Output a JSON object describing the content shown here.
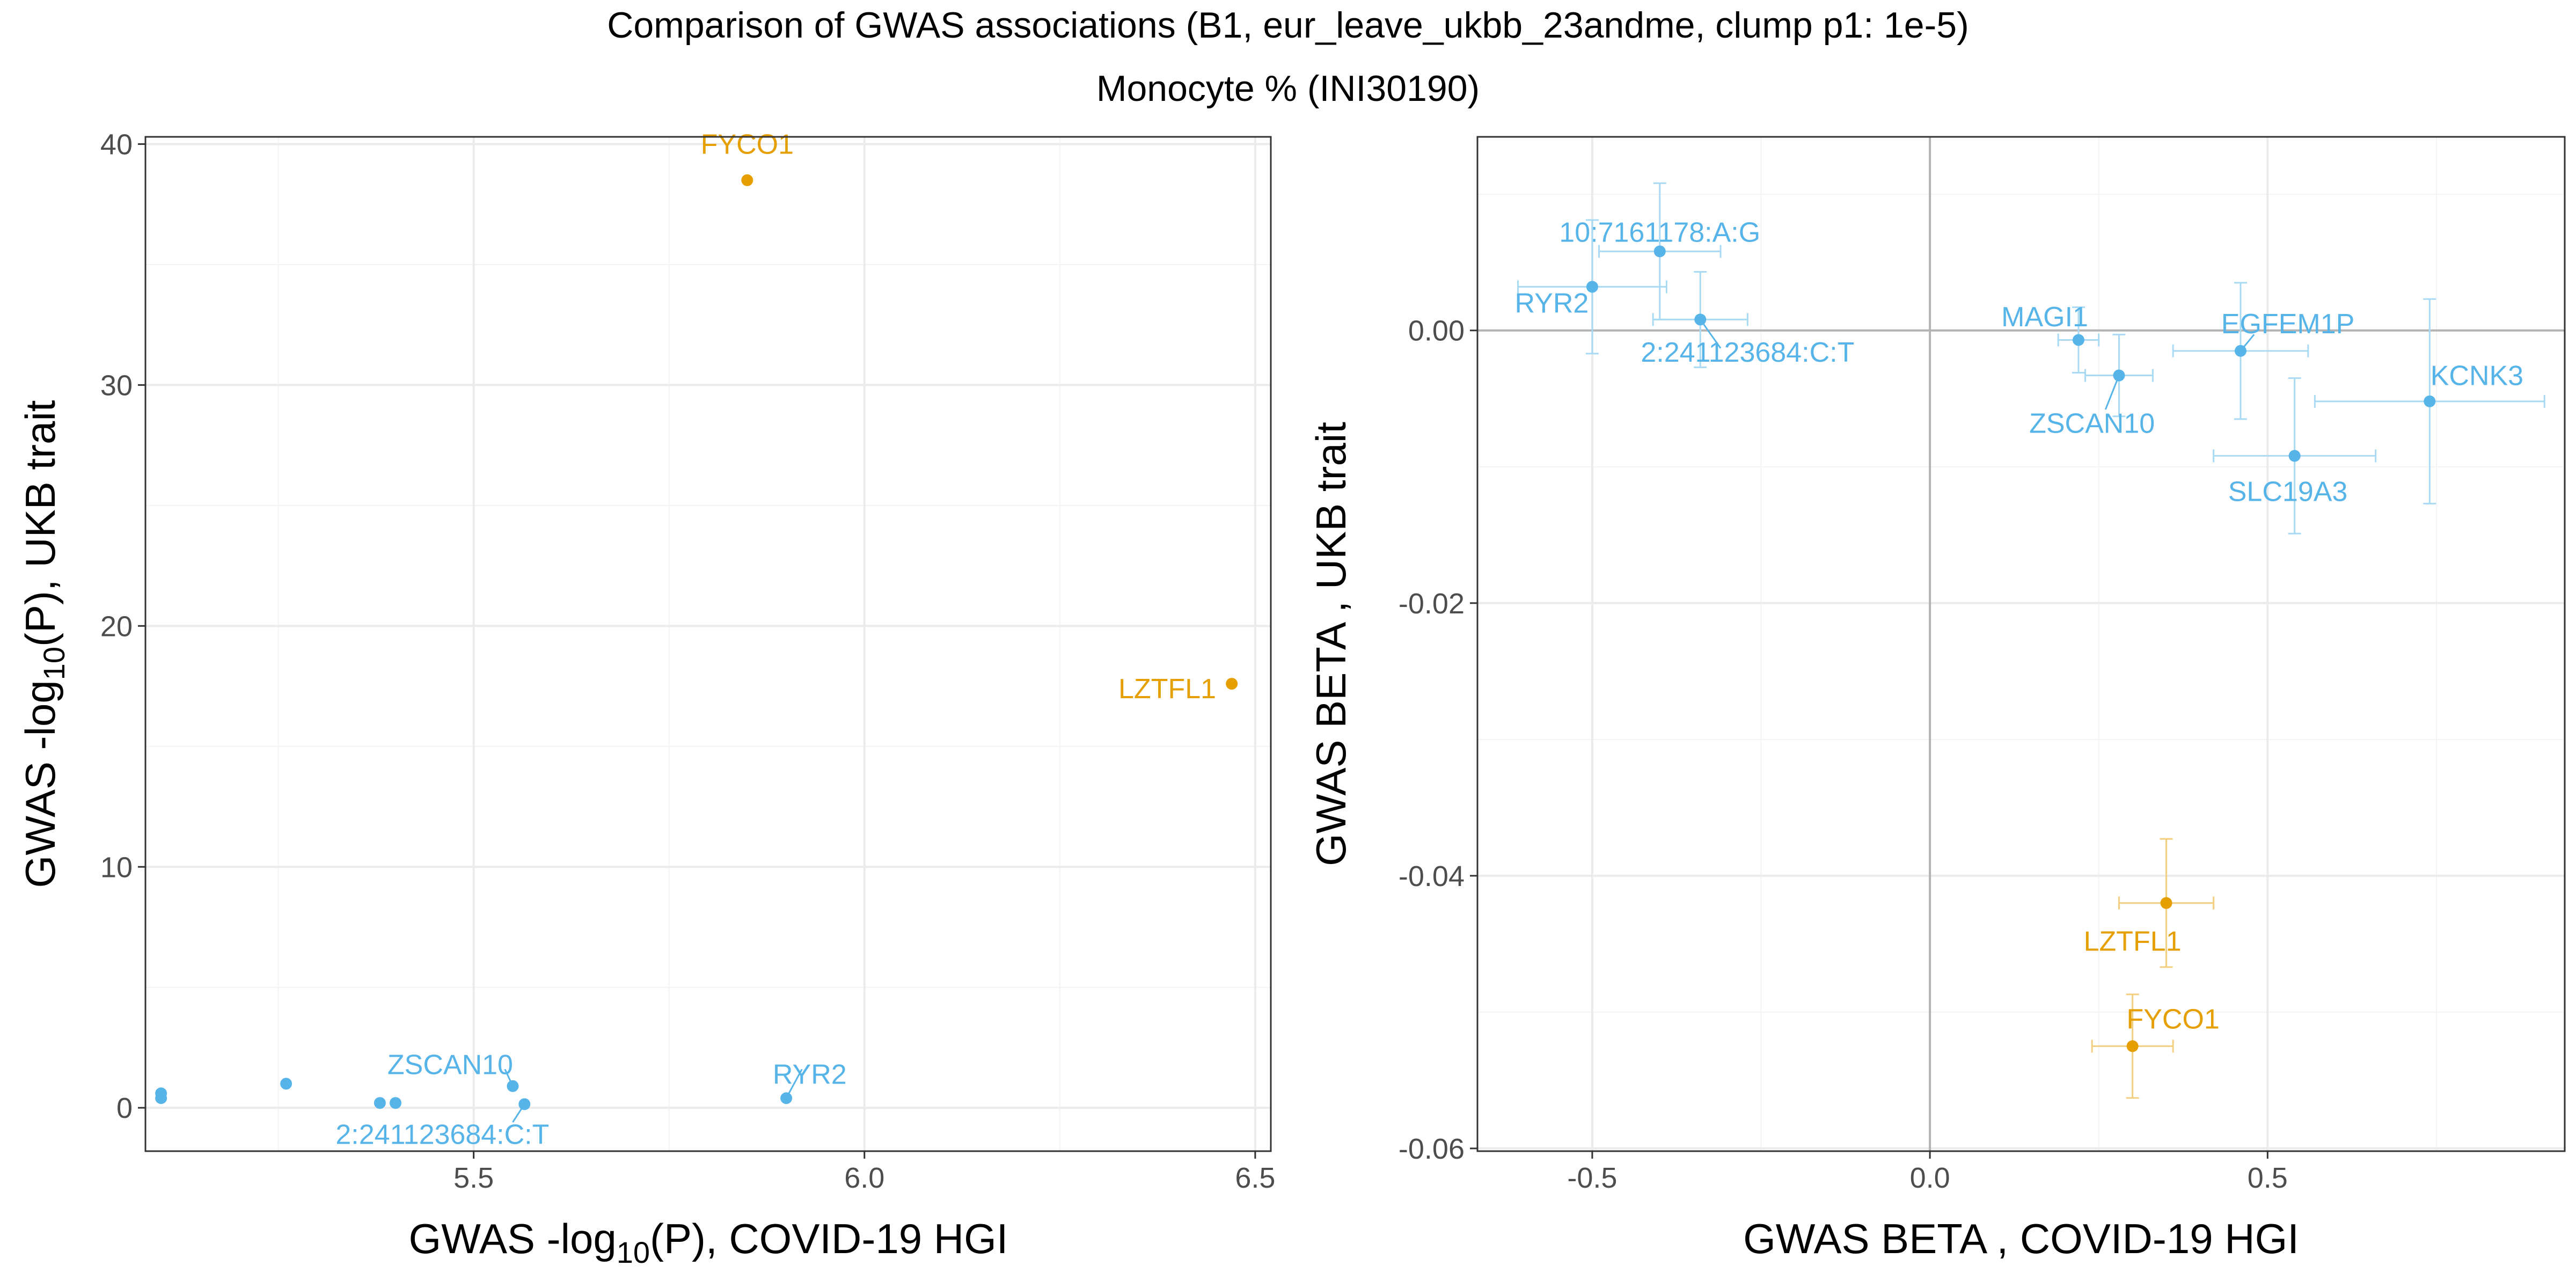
{
  "title_line1": "Comparison of GWAS associations (B1, eur_leave_ukbb_23andme, clump p1: 1e-5)",
  "title_line2": "Monocyte % (INI30190)",
  "colors": {
    "highlight": "#E69F00",
    "default": "#56B4E9",
    "errorbar_default": "#A9DAF4",
    "errorbar_highlight": "#F2CF80",
    "refline": "#b3b3b3"
  },
  "chart_data": [
    {
      "type": "scatter",
      "xlabel": {
        "pre": "GWAS -log",
        "sub": "10",
        "post": "(P), COVID-19 HGI"
      },
      "ylabel": {
        "pre": "GWAS -log",
        "sub": "10",
        "post": "(P), UKB trait"
      },
      "xlim": [
        5.08,
        6.52
      ],
      "ylim": [
        -1.8,
        40.3
      ],
      "xticks": [
        5.5,
        6.0,
        6.5
      ],
      "xtick_labels": [
        "5.5",
        "6.0",
        "6.5"
      ],
      "yticks": [
        0,
        10,
        20,
        30,
        40
      ],
      "ytick_labels": [
        "0",
        "10",
        "20",
        "30",
        "40"
      ],
      "points": [
        {
          "x": 5.85,
          "y": 38.5,
          "label": "FYCO1",
          "color": "highlight",
          "lx": 5.85,
          "ly": 39.6,
          "anchor": "middle"
        },
        {
          "x": 6.47,
          "y": 17.6,
          "label": "LZTFL1",
          "color": "highlight",
          "lx": 6.45,
          "ly": 17.0,
          "anchor": "end"
        },
        {
          "x": 5.55,
          "y": 0.9,
          "label": "ZSCAN10",
          "color": "default",
          "lx": 5.47,
          "ly": 1.4,
          "anchor": "middle",
          "seg": [
            5.54,
            1.6
          ]
        },
        {
          "x": 5.9,
          "y": 0.4,
          "label": "RYR2",
          "color": "default",
          "lx": 5.93,
          "ly": 1.0,
          "anchor": "middle",
          "seg": [
            5.92,
            1.6
          ]
        },
        {
          "x": 5.565,
          "y": 0.15,
          "label": "2:241123684:C:T",
          "color": "default",
          "lx": 5.46,
          "ly": -1.5,
          "anchor": "middle",
          "seg": [
            5.55,
            -0.6
          ]
        },
        {
          "x": 5.1,
          "y": 0.6,
          "label": "",
          "color": "default"
        },
        {
          "x": 5.1,
          "y": 0.4,
          "label": "",
          "color": "default"
        },
        {
          "x": 5.26,
          "y": 1.0,
          "label": "",
          "color": "default"
        },
        {
          "x": 5.38,
          "y": 0.2,
          "label": "",
          "color": "default"
        },
        {
          "x": 5.4,
          "y": 0.2,
          "label": "",
          "color": "default"
        }
      ]
    },
    {
      "type": "scatter",
      "xlabel": {
        "pre": "GWAS BETA , COVID-19 HGI",
        "sub": "",
        "post": ""
      },
      "ylabel": {
        "pre": "GWAS BETA , UKB trait",
        "sub": "",
        "post": ""
      },
      "xlim": [
        -0.67,
        0.94
      ],
      "ylim": [
        -0.0602,
        0.0142
      ],
      "xticks": [
        -0.5,
        0.0,
        0.5
      ],
      "xtick_labels": [
        "-0.5",
        "0.0",
        "0.5"
      ],
      "yticks": [
        0.0,
        -0.02,
        -0.04,
        -0.06
      ],
      "ytick_labels": [
        "0.00",
        "-0.02",
        "-0.04",
        "-0.06"
      ],
      "points": [
        {
          "x": -0.4,
          "y": 0.0058,
          "xerr": 0.09,
          "yerr": 0.005,
          "label": "10:7161178:A:G",
          "color": "default",
          "lx": -0.4,
          "ly": 0.0065,
          "anchor": "middle"
        },
        {
          "x": -0.5,
          "y": 0.0032,
          "xerr": 0.11,
          "yerr": 0.0049,
          "label": "RYR2",
          "color": "default",
          "lx": -0.56,
          "ly": 0.0013,
          "anchor": "middle"
        },
        {
          "x": -0.34,
          "y": 0.0008,
          "xerr": 0.07,
          "yerr": 0.0035,
          "label": "2:241123684:C:T",
          "color": "default",
          "lx": -0.27,
          "ly": -0.0023,
          "anchor": "middle",
          "seg": [
            -0.31,
            -0.0013
          ]
        },
        {
          "x": 0.22,
          "y": -0.0007,
          "xerr": 0.03,
          "yerr": 0.0024,
          "label": "MAGI1",
          "color": "default",
          "lx": 0.17,
          "ly": 0.0003,
          "anchor": "middle"
        },
        {
          "x": 0.28,
          "y": -0.0033,
          "xerr": 0.05,
          "yerr": 0.003,
          "label": "ZSCAN10",
          "color": "default",
          "lx": 0.24,
          "ly": -0.0075,
          "anchor": "middle",
          "seg": [
            0.26,
            -0.0058
          ]
        },
        {
          "x": 0.46,
          "y": -0.0015,
          "xerr": 0.1,
          "yerr": 0.005,
          "label": "EGFEM1P",
          "color": "default",
          "lx": 0.53,
          "ly": -0.0002,
          "anchor": "middle",
          "seg": [
            0.48,
            -0.0003
          ]
        },
        {
          "x": 0.74,
          "y": -0.0052,
          "xerr": 0.17,
          "yerr": 0.0075,
          "label": "KCNK3",
          "color": "default",
          "lx": 0.81,
          "ly": -0.004,
          "anchor": "middle"
        },
        {
          "x": 0.54,
          "y": -0.0092,
          "xerr": 0.12,
          "yerr": 0.0057,
          "label": "SLC19A3",
          "color": "default",
          "lx": 0.53,
          "ly": -0.0125,
          "anchor": "middle"
        },
        {
          "x": 0.35,
          "y": -0.042,
          "xerr": 0.07,
          "yerr": 0.0047,
          "label": "LZTFL1",
          "color": "highlight",
          "lx": 0.3,
          "ly": -0.0455,
          "anchor": "middle"
        },
        {
          "x": 0.3,
          "y": -0.0525,
          "xerr": 0.06,
          "yerr": 0.0038,
          "label": "FYCO1",
          "color": "highlight",
          "lx": 0.36,
          "ly": -0.0512,
          "anchor": "middle"
        }
      ]
    }
  ]
}
